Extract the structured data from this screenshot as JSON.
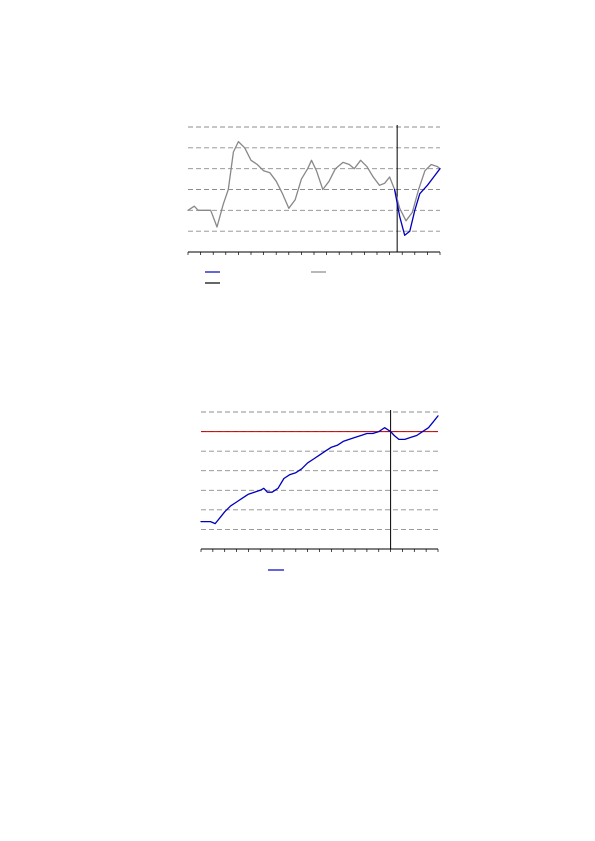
{
  "chart_data": [
    {
      "type": "line",
      "title": "",
      "xlabel": "",
      "ylabel": "",
      "x_tick_count": 21,
      "ylim": [
        0,
        6
      ],
      "y_gridlines": [
        1,
        2,
        3,
        4,
        5,
        6
      ],
      "grid": true,
      "legend": "bottom",
      "vertical_marker_x": 16.6,
      "series": [
        {
          "color": "#888888",
          "points": [
            [
              0.0,
              2.0
            ],
            [
              0.5,
              2.2
            ],
            [
              0.8,
              2.0
            ],
            [
              1.3,
              2.0
            ],
            [
              1.8,
              2.0
            ],
            [
              2.3,
              1.2
            ],
            [
              2.8,
              2.3
            ],
            [
              3.2,
              3.0
            ],
            [
              3.6,
              4.8
            ],
            [
              4.0,
              5.3
            ],
            [
              4.5,
              5.0
            ],
            [
              5.0,
              4.4
            ],
            [
              5.5,
              4.2
            ],
            [
              6.0,
              3.9
            ],
            [
              6.5,
              3.8
            ],
            [
              7.0,
              3.4
            ],
            [
              7.5,
              2.8
            ],
            [
              8.0,
              2.1
            ],
            [
              8.5,
              2.5
            ],
            [
              9.0,
              3.5
            ],
            [
              9.5,
              4.0
            ],
            [
              9.8,
              4.4
            ],
            [
              10.2,
              3.9
            ],
            [
              10.7,
              3.0
            ],
            [
              11.2,
              3.4
            ],
            [
              11.7,
              4.0
            ],
            [
              12.3,
              4.3
            ],
            [
              12.8,
              4.2
            ],
            [
              13.2,
              4.0
            ],
            [
              13.7,
              4.4
            ],
            [
              14.2,
              4.1
            ],
            [
              14.7,
              3.6
            ],
            [
              15.2,
              3.2
            ],
            [
              15.6,
              3.3
            ],
            [
              16.0,
              3.6
            ],
            [
              16.4,
              3.0
            ],
            [
              16.8,
              2.1
            ],
            [
              17.3,
              1.5
            ],
            [
              17.8,
              1.9
            ],
            [
              18.3,
              3.0
            ],
            [
              18.8,
              3.9
            ],
            [
              19.3,
              4.2
            ],
            [
              19.8,
              4.1
            ],
            [
              20.0,
              4.0
            ]
          ]
        },
        {
          "color": "#0000bf",
          "points": [
            [
              16.4,
              3.0
            ],
            [
              16.8,
              1.7
            ],
            [
              17.2,
              0.8
            ],
            [
              17.6,
              1.0
            ],
            [
              18.0,
              2.0
            ],
            [
              18.4,
              2.8
            ],
            [
              19.0,
              3.2
            ],
            [
              19.5,
              3.6
            ],
            [
              20.0,
              4.0
            ]
          ]
        }
      ],
      "legend_entries": [
        {
          "label": "",
          "color": "#0000bf"
        },
        {
          "label": "",
          "color": "#888888"
        },
        {
          "label": "",
          "color": "#000000"
        }
      ]
    },
    {
      "type": "line",
      "title": "",
      "xlabel": "",
      "ylabel": "",
      "x_tick_count": 21,
      "ylim": [
        0,
        7
      ],
      "y_gridlines": [
        1,
        2,
        3,
        4,
        5,
        6,
        7
      ],
      "grid": true,
      "legend": "bottom",
      "vertical_marker_x": 16.0,
      "horizontal_line_y": 6.0,
      "horizontal_line_color": "#c00000",
      "series": [
        {
          "color": "#0000bf",
          "points": [
            [
              0.0,
              1.4
            ],
            [
              0.5,
              1.4
            ],
            [
              0.8,
              1.4
            ],
            [
              1.2,
              1.3
            ],
            [
              1.6,
              1.6
            ],
            [
              2.0,
              1.9
            ],
            [
              2.5,
              2.2
            ],
            [
              3.0,
              2.4
            ],
            [
              3.5,
              2.6
            ],
            [
              4.0,
              2.8
            ],
            [
              4.5,
              2.9
            ],
            [
              5.0,
              3.0
            ],
            [
              5.3,
              3.1
            ],
            [
              5.6,
              2.9
            ],
            [
              6.0,
              2.9
            ],
            [
              6.5,
              3.1
            ],
            [
              7.0,
              3.6
            ],
            [
              7.5,
              3.8
            ],
            [
              8.0,
              3.9
            ],
            [
              8.5,
              4.1
            ],
            [
              9.0,
              4.4
            ],
            [
              9.5,
              4.6
            ],
            [
              10.0,
              4.8
            ],
            [
              10.5,
              5.0
            ],
            [
              11.0,
              5.2
            ],
            [
              11.5,
              5.3
            ],
            [
              12.0,
              5.5
            ],
            [
              12.5,
              5.6
            ],
            [
              13.0,
              5.7
            ],
            [
              13.5,
              5.8
            ],
            [
              14.0,
              5.9
            ],
            [
              14.5,
              5.9
            ],
            [
              15.0,
              6.0
            ],
            [
              15.5,
              6.2
            ],
            [
              16.0,
              6.0
            ],
            [
              16.3,
              5.8
            ],
            [
              16.7,
              5.6
            ],
            [
              17.2,
              5.6
            ],
            [
              17.7,
              5.7
            ],
            [
              18.2,
              5.8
            ],
            [
              18.7,
              6.0
            ],
            [
              19.2,
              6.2
            ],
            [
              19.6,
              6.5
            ],
            [
              20.0,
              6.8
            ]
          ]
        }
      ],
      "legend_entries": [
        {
          "label": "",
          "color": "#0000bf"
        }
      ]
    }
  ]
}
